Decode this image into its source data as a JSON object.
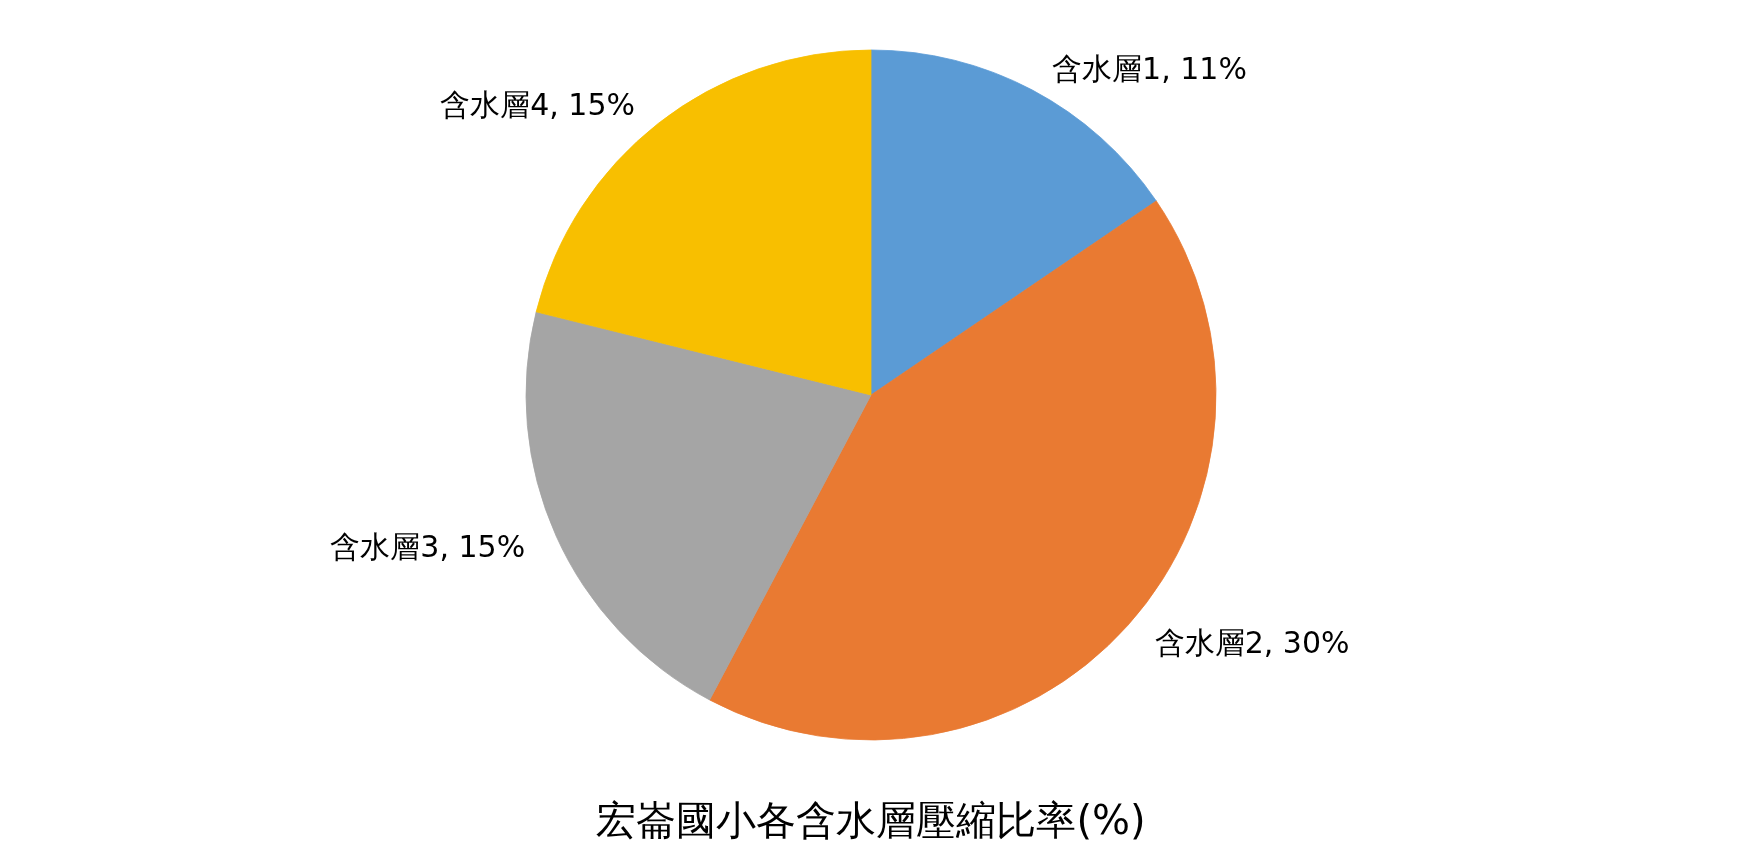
{
  "chart_data": {
    "type": "pie",
    "title": "宏崙國小各含水層壓縮比率(%)",
    "categories": [
      "含水層1",
      "含水層2",
      "含水層3",
      "含水層4"
    ],
    "values": [
      11,
      30,
      15,
      15
    ],
    "colors": [
      "#5b9bd5",
      "#e97a32",
      "#a5a5a5",
      "#f8bf00"
    ],
    "value_labels": [
      ", 11%",
      ", 30%",
      ", 15%",
      ", 15%"
    ]
  }
}
